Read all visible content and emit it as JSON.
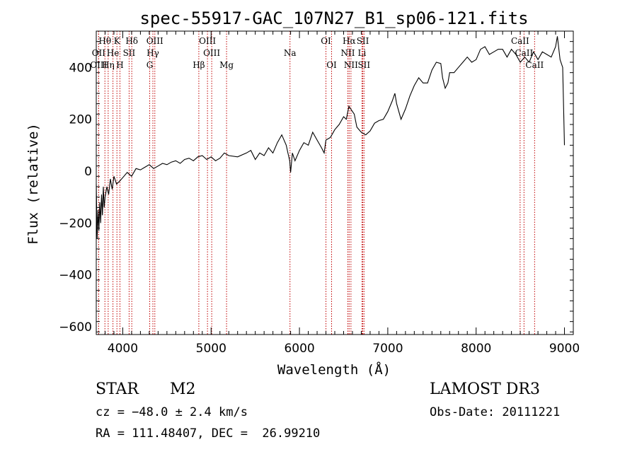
{
  "chart_data": {
    "type": "line",
    "title": "spec-55917-GAC_107N27_B1_sp06-121.fits",
    "xlabel": "Wavelength (Å)",
    "ylabel": "Flux (relative)",
    "xlim": [
      3700,
      9100
    ],
    "ylim": [
      -630,
      540
    ],
    "x_ticks": [
      4000,
      5000,
      6000,
      7000,
      8000,
      9000
    ],
    "y_ticks": [
      -600,
      -400,
      -200,
      0,
      200,
      400
    ],
    "grid": false,
    "series": [
      {
        "x": [
          3700,
          3710,
          3720,
          3730,
          3740,
          3750,
          3760,
          3770,
          3780,
          3790,
          3800,
          3820,
          3840,
          3860,
          3880,
          3900,
          3930,
          3960,
          4000,
          4050,
          4100,
          4150,
          4200,
          4250,
          4300,
          4350,
          4400,
          4450,
          4500,
          4550,
          4600,
          4650,
          4700,
          4750,
          4800,
          4850,
          4900,
          4950,
          5000,
          5050,
          5100,
          5150,
          5200,
          5300,
          5400,
          5450,
          5500,
          5550,
          5600,
          5650,
          5700,
          5750,
          5800,
          5850,
          5870,
          5890,
          5900,
          5920,
          5950,
          6000,
          6050,
          6100,
          6150,
          6200,
          6250,
          6280,
          6300,
          6350,
          6400,
          6450,
          6500,
          6530,
          6560,
          6580,
          6600,
          6620,
          6650,
          6700,
          6750,
          6800,
          6850,
          6900,
          6950,
          7000,
          7050,
          7080,
          7100,
          7150,
          7200,
          7250,
          7300,
          7350,
          7400,
          7450,
          7500,
          7550,
          7600,
          7620,
          7650,
          7680,
          7700,
          7750,
          7800,
          7850,
          7900,
          7950,
          8000,
          8050,
          8100,
          8150,
          8200,
          8250,
          8300,
          8350,
          8400,
          8450,
          8500,
          8550,
          8600,
          8650,
          8700,
          8750,
          8800,
          8850,
          8900,
          8920,
          8950,
          8980,
          9000
        ],
        "y": [
          -50,
          -260,
          -150,
          -230,
          -120,
          -200,
          -90,
          -170,
          -60,
          -140,
          -100,
          -60,
          -90,
          -30,
          -70,
          -20,
          -50,
          -40,
          -25,
          -5,
          -20,
          10,
          5,
          15,
          25,
          10,
          20,
          30,
          25,
          35,
          40,
          30,
          45,
          50,
          40,
          55,
          60,
          45,
          55,
          40,
          50,
          70,
          60,
          55,
          70,
          80,
          45,
          70,
          60,
          90,
          70,
          110,
          140,
          100,
          70,
          40,
          -5,
          70,
          40,
          80,
          110,
          100,
          150,
          120,
          90,
          70,
          120,
          130,
          160,
          180,
          210,
          200,
          250,
          240,
          230,
          220,
          170,
          150,
          140,
          155,
          185,
          195,
          200,
          230,
          270,
          300,
          260,
          200,
          240,
          290,
          330,
          360,
          340,
          340,
          390,
          420,
          415,
          360,
          320,
          340,
          380,
          380,
          400,
          420,
          440,
          420,
          430,
          470,
          480,
          450,
          460,
          470,
          470,
          440,
          470,
          450,
          420,
          440,
          420,
          460,
          430,
          460,
          450,
          440,
          480,
          520,
          430,
          400,
          100
        ]
      }
    ],
    "lines": [
      {
        "name": "Hθ",
        "x": 3798,
        "row": 0
      },
      {
        "name": "K",
        "x": 3934,
        "row": 0
      },
      {
        "name": "Hδ",
        "x": 4102,
        "row": 0
      },
      {
        "name": "OIII",
        "x": 4363,
        "row": 0
      },
      {
        "name": "OIII",
        "x": 4959,
        "row": 0
      },
      {
        "name": "OI",
        "x": 6300,
        "row": 0
      },
      {
        "name": "Hα",
        "x": 6563,
        "row": 0
      },
      {
        "name": "SII",
        "x": 6717,
        "row": 0
      },
      {
        "name": "CaII",
        "x": 8498,
        "row": 0
      },
      {
        "name": "OII",
        "x": 3727,
        "row": 1
      },
      {
        "name": "He",
        "x": 3889,
        "row": 1
      },
      {
        "name": "SII",
        "x": 4072,
        "row": 1
      },
      {
        "name": "Hγ",
        "x": 4341,
        "row": 1
      },
      {
        "name": "OIII",
        "x": 5007,
        "row": 1
      },
      {
        "name": "Na",
        "x": 5893,
        "row": 1
      },
      {
        "name": "NII",
        "x": 6548,
        "row": 1
      },
      {
        "name": "Li",
        "x": 6708,
        "row": 1
      },
      {
        "name": "CaII",
        "x": 8542,
        "row": 1
      },
      {
        "name": "OIII",
        "x": 3727,
        "row": 2
      },
      {
        "name": "Hη",
        "x": 3835,
        "row": 2
      },
      {
        "name": "H",
        "x": 3968,
        "row": 2
      },
      {
        "name": "G",
        "x": 4305,
        "row": 2
      },
      {
        "name": "Hβ",
        "x": 4861,
        "row": 2
      },
      {
        "name": "Mg",
        "x": 5175,
        "row": 2
      },
      {
        "name": "OI",
        "x": 6364,
        "row": 2
      },
      {
        "name": "NII",
        "x": 6583,
        "row": 2
      },
      {
        "name": "SII",
        "x": 6731,
        "row": 2
      },
      {
        "name": "CaII",
        "x": 8662,
        "row": 2
      }
    ]
  },
  "info": {
    "object_class": "STAR",
    "subclass": "M2",
    "cz": "cz = −48.0 ± 2.4 km/s",
    "radec": "RA = 111.48407, DEC =  26.99210",
    "survey": "LAMOST DR3",
    "obs_date": "Obs-Date: 20111221"
  }
}
